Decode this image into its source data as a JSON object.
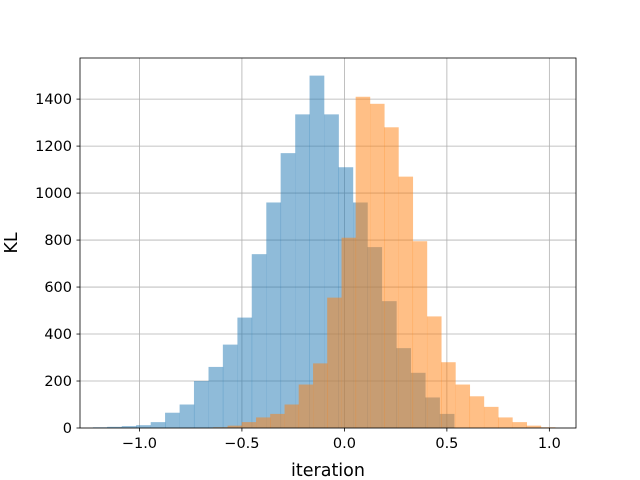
{
  "chart_data": {
    "type": "histogram",
    "title": "",
    "xlabel": "iteration",
    "ylabel": "KL",
    "xlim": [
      -1.29,
      1.13
    ],
    "ylim": [
      0,
      1575
    ],
    "xticks": [
      -1.0,
      -0.5,
      0.0,
      0.5,
      1.0
    ],
    "xtick_labels": [
      "−1.0",
      "−0.5",
      "0.0",
      "0.5",
      "1.0"
    ],
    "yticks": [
      0,
      200,
      400,
      600,
      800,
      1000,
      1200,
      1400
    ],
    "ytick_labels": [
      "0",
      "200",
      "400",
      "600",
      "800",
      "1000",
      "1200",
      "1400"
    ],
    "grid": true,
    "legend": null,
    "series": [
      {
        "color": "#1f77b4",
        "opacity": 0.5,
        "bin_width": 0.0705,
        "bins": [
          {
            "x0": -1.227,
            "count": 3
          },
          {
            "x0": -1.157,
            "count": 5
          },
          {
            "x0": -1.086,
            "count": 8
          },
          {
            "x0": -1.016,
            "count": 12
          },
          {
            "x0": -0.945,
            "count": 25
          },
          {
            "x0": -0.875,
            "count": 65
          },
          {
            "x0": -0.804,
            "count": 100
          },
          {
            "x0": -0.734,
            "count": 200
          },
          {
            "x0": -0.663,
            "count": 260
          },
          {
            "x0": -0.593,
            "count": 355
          },
          {
            "x0": -0.522,
            "count": 470
          },
          {
            "x0": -0.452,
            "count": 740
          },
          {
            "x0": -0.381,
            "count": 960
          },
          {
            "x0": -0.311,
            "count": 1170
          },
          {
            "x0": -0.24,
            "count": 1335
          },
          {
            "x0": -0.17,
            "count": 1500
          },
          {
            "x0": -0.099,
            "count": 1335
          },
          {
            "x0": -0.029,
            "count": 1110
          },
          {
            "x0": 0.042,
            "count": 960
          },
          {
            "x0": 0.112,
            "count": 770
          },
          {
            "x0": 0.183,
            "count": 540
          },
          {
            "x0": 0.253,
            "count": 340
          },
          {
            "x0": 0.324,
            "count": 235
          },
          {
            "x0": 0.394,
            "count": 130
          },
          {
            "x0": 0.465,
            "count": 60
          }
        ]
      },
      {
        "color": "#ff7f0e",
        "opacity": 0.5,
        "bin_width": 0.0695,
        "bins": [
          {
            "x0": -0.64,
            "count": 3
          },
          {
            "x0": -0.57,
            "count": 10
          },
          {
            "x0": -0.501,
            "count": 25
          },
          {
            "x0": -0.431,
            "count": 45
          },
          {
            "x0": -0.362,
            "count": 60
          },
          {
            "x0": -0.292,
            "count": 100
          },
          {
            "x0": -0.223,
            "count": 185
          },
          {
            "x0": -0.153,
            "count": 275
          },
          {
            "x0": -0.084,
            "count": 555
          },
          {
            "x0": -0.014,
            "count": 810
          },
          {
            "x0": 0.055,
            "count": 1410
          },
          {
            "x0": 0.125,
            "count": 1380
          },
          {
            "x0": 0.194,
            "count": 1280
          },
          {
            "x0": 0.264,
            "count": 1070
          },
          {
            "x0": 0.333,
            "count": 795
          },
          {
            "x0": 0.403,
            "count": 475
          },
          {
            "x0": 0.472,
            "count": 280
          },
          {
            "x0": 0.542,
            "count": 185
          },
          {
            "x0": 0.611,
            "count": 135
          },
          {
            "x0": 0.681,
            "count": 90
          },
          {
            "x0": 0.75,
            "count": 45
          },
          {
            "x0": 0.82,
            "count": 25
          },
          {
            "x0": 0.889,
            "count": 10
          },
          {
            "x0": 0.959,
            "count": 3
          }
        ]
      }
    ]
  }
}
